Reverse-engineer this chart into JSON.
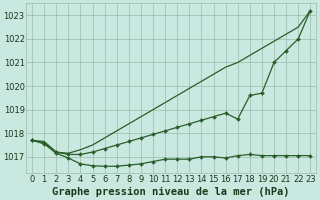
{
  "xlabel": "Graphe pression niveau de la mer (hPa)",
  "x": [
    0,
    1,
    2,
    3,
    4,
    5,
    6,
    7,
    8,
    9,
    10,
    11,
    12,
    13,
    14,
    15,
    16,
    17,
    18,
    19,
    20,
    21,
    22,
    23
  ],
  "line1_no_marker": [
    1017.7,
    1017.65,
    1017.2,
    1017.15,
    1017.3,
    1017.5,
    1017.8,
    1018.1,
    1018.4,
    1018.7,
    1019.0,
    1019.3,
    1019.6,
    1019.9,
    1020.2,
    1020.5,
    1020.8,
    1021.0,
    1021.3,
    1021.6,
    1021.9,
    1022.2,
    1022.5,
    1023.2
  ],
  "line2_with_marker": [
    1017.7,
    1017.6,
    1017.2,
    1017.1,
    1017.1,
    1017.2,
    1017.35,
    1017.5,
    1017.65,
    1017.8,
    1017.95,
    1018.1,
    1018.25,
    1018.4,
    1018.55,
    1018.7,
    1018.85,
    1018.6,
    1019.6,
    1019.7,
    1021.0,
    1021.5,
    1022.0,
    1023.2
  ],
  "line3_with_marker": [
    1017.7,
    1017.55,
    1017.15,
    1016.95,
    1016.7,
    1016.62,
    1016.6,
    1016.6,
    1016.65,
    1016.7,
    1016.8,
    1016.9,
    1016.9,
    1016.9,
    1017.0,
    1017.0,
    1016.95,
    1017.05,
    1017.1,
    1017.05,
    1017.05,
    1017.05,
    1017.05,
    1017.05
  ],
  "bg_color": "#c8e8e0",
  "grid_color": "#99bbaa",
  "line_color": "#2a5e2a",
  "ylim_min": 1016.3,
  "ylim_max": 1023.5,
  "yticks": [
    1017,
    1018,
    1019,
    1020,
    1021,
    1022,
    1023
  ],
  "xlabel_fontsize": 7.5,
  "tick_fontsize": 6.0,
  "tick_color": "#1a3a1a"
}
